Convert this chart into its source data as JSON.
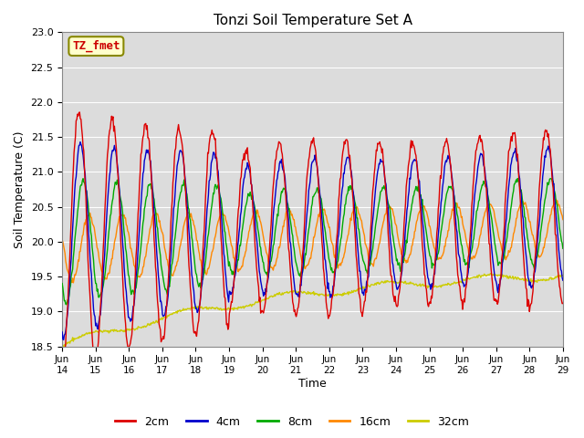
{
  "title": "Tonzi Soil Temperature Set A",
  "xlabel": "Time",
  "ylabel": "Soil Temperature (C)",
  "annotation": "TZ_fmet",
  "ylim": [
    18.5,
    23.0
  ],
  "series_colors": [
    "#dd0000",
    "#0000cc",
    "#00aa00",
    "#ff8800",
    "#cccc00"
  ],
  "series_labels": [
    "2cm",
    "4cm",
    "8cm",
    "16cm",
    "32cm"
  ],
  "bg_color": "#ffffff",
  "plot_bg_color": "#dcdcdc",
  "legend_bg": "#ffffcc",
  "x_tick_labels": [
    "Jun\n14",
    "Jun\n15",
    "Jun\n16",
    "Jun\n17",
    "Jun\n18",
    "Jun\n19",
    "Jun\n20",
    "Jun\n21",
    "Jun\n22",
    "Jun\n23",
    "Jun\n24",
    "Jun\n25",
    "Jun\n26",
    "Jun\n27",
    "Jun\n28",
    "Jun\n29"
  ],
  "grid_color": "#ffffff",
  "n_points": 720
}
